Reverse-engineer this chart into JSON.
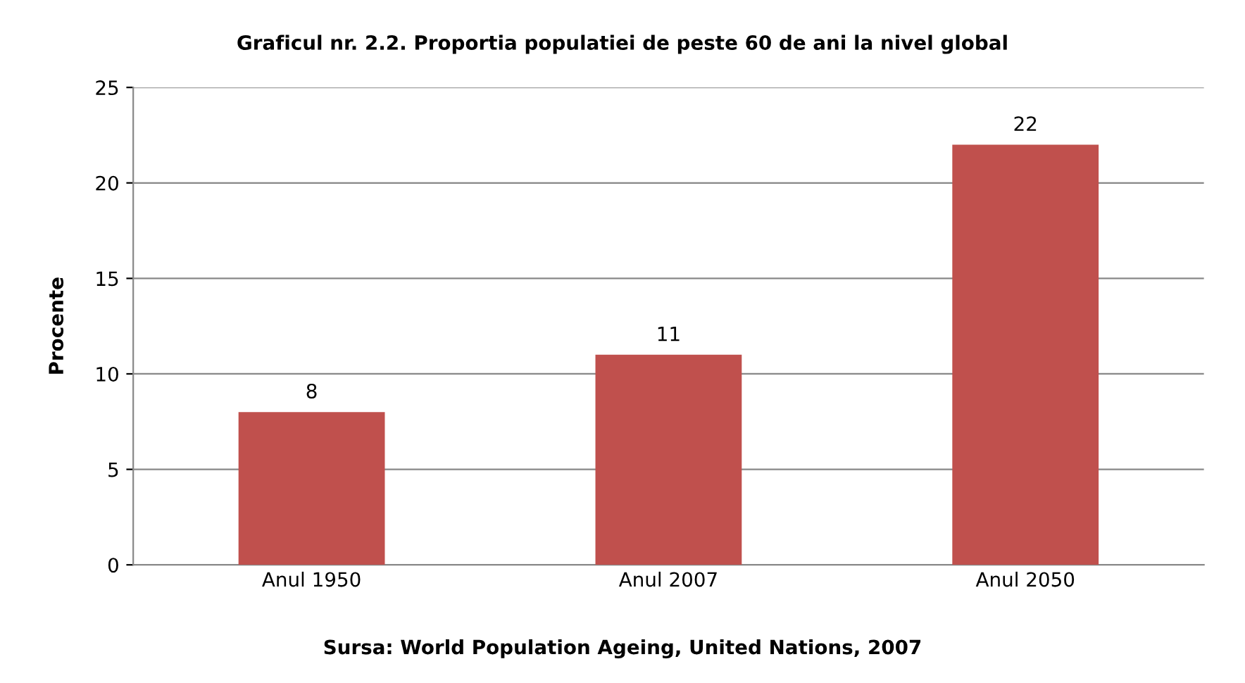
{
  "chart_data": {
    "type": "bar",
    "title": "Graficul nr. 2.2. Proportia populatiei de peste 60 de ani la nivel global",
    "ylabel": "Procente",
    "categories": [
      "Anul 1950",
      "Anul 2007",
      "Anul 2050"
    ],
    "values": [
      8,
      11,
      22
    ],
    "color": "#c0504d",
    "ylim": [
      0,
      25
    ],
    "yticks": [
      0,
      5,
      10,
      15,
      20,
      25
    ],
    "grid": "y",
    "data_labels": true,
    "annotations": [
      "Sursa: World Population Ageing, United Nations, 2007"
    ]
  }
}
